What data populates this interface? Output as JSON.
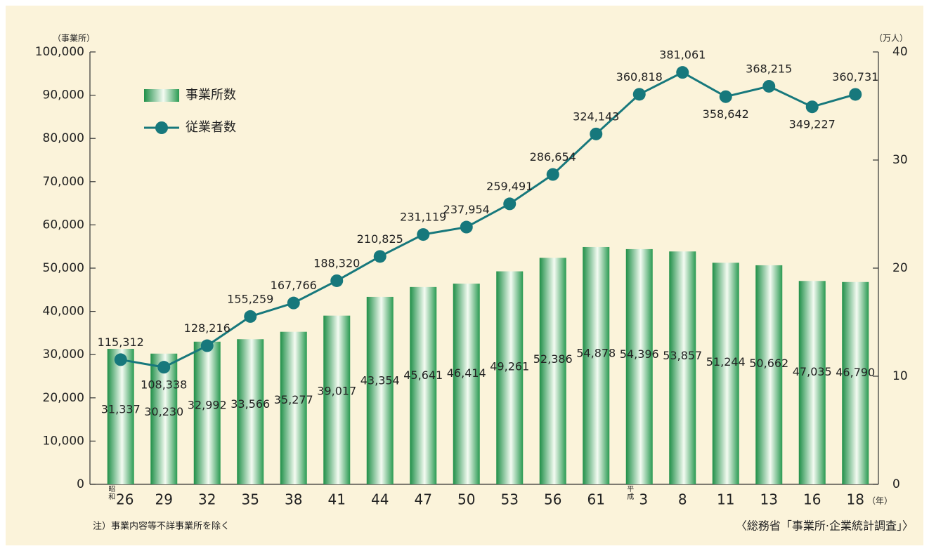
{
  "chart_data": {
    "type": "bar_line",
    "categories": [
      "26",
      "29",
      "32",
      "35",
      "38",
      "41",
      "44",
      "47",
      "50",
      "53",
      "56",
      "61",
      "3",
      "8",
      "11",
      "13",
      "16",
      "18"
    ],
    "era_labels": [
      "昭和",
      null,
      null,
      null,
      null,
      null,
      null,
      null,
      null,
      null,
      null,
      null,
      "平成",
      null,
      null,
      null,
      null,
      null
    ],
    "x_unit": "（年）",
    "y_unit": "（事業所）",
    "y2_unit": "（万人）",
    "ylim": [
      0,
      100000
    ],
    "yticks": [
      0,
      {
        "value": 10000,
        "label": "10,000"
      },
      {
        "value": 20000,
        "label": "20,000"
      },
      {
        "value": 30000,
        "label": "30,000"
      },
      {
        "value": 40000,
        "label": "40,000"
      },
      {
        "value": 50000,
        "label": "50,000"
      },
      {
        "value": 60000,
        "label": "60,000"
      },
      {
        "value": 70000,
        "label": "70,000"
      },
      {
        "value": 80000,
        "label": "80,000"
      },
      {
        "value": 90000,
        "label": "90,000"
      },
      {
        "value": 100000,
        "label": "100,000"
      }
    ],
    "y2lim": [
      0,
      40
    ],
    "y2ticks": [
      0,
      10,
      20,
      30,
      40
    ],
    "series": [
      {
        "name": "事業所数",
        "type": "bar",
        "color": "#2e9a55",
        "values": [
          31337,
          30230,
          32992,
          33566,
          35277,
          39017,
          43354,
          45641,
          46414,
          49261,
          52386,
          54878,
          54396,
          53857,
          51244,
          50662,
          47035,
          46790
        ],
        "value_labels": [
          "31,337",
          "30,230",
          "32,992",
          "33,566",
          "35,277",
          "39,017",
          "43,354",
          "45,641",
          "46,414",
          "49,261",
          "52,386",
          "54,878",
          "54,396",
          "53,857",
          "51,244",
          "50,662",
          "47,035",
          "46,790"
        ]
      },
      {
        "name": "従業者数",
        "type": "line",
        "axis": "y2",
        "color": "#17787c",
        "values": [
          11.5312,
          10.8338,
          12.8216,
          15.5259,
          16.7766,
          18.832,
          21.0825,
          23.1119,
          23.7954,
          25.9491,
          28.6654,
          32.4143,
          36.0818,
          38.1061,
          35.8642,
          36.8215,
          34.9227,
          36.0731
        ],
        "value_labels": [
          "115,312",
          "108,338",
          "128,216",
          "155,259",
          "167,766",
          "188,320",
          "210,825",
          "231,119",
          "237,954",
          "259,491",
          "286,654",
          "324,143",
          "360,818",
          "381,061",
          "358,642",
          "368,215",
          "349,227",
          "360,731"
        ]
      }
    ],
    "note": "注）事業内容等不詳事業所を除く",
    "source": "〈総務省「事業所·企業統計調査」〉"
  }
}
